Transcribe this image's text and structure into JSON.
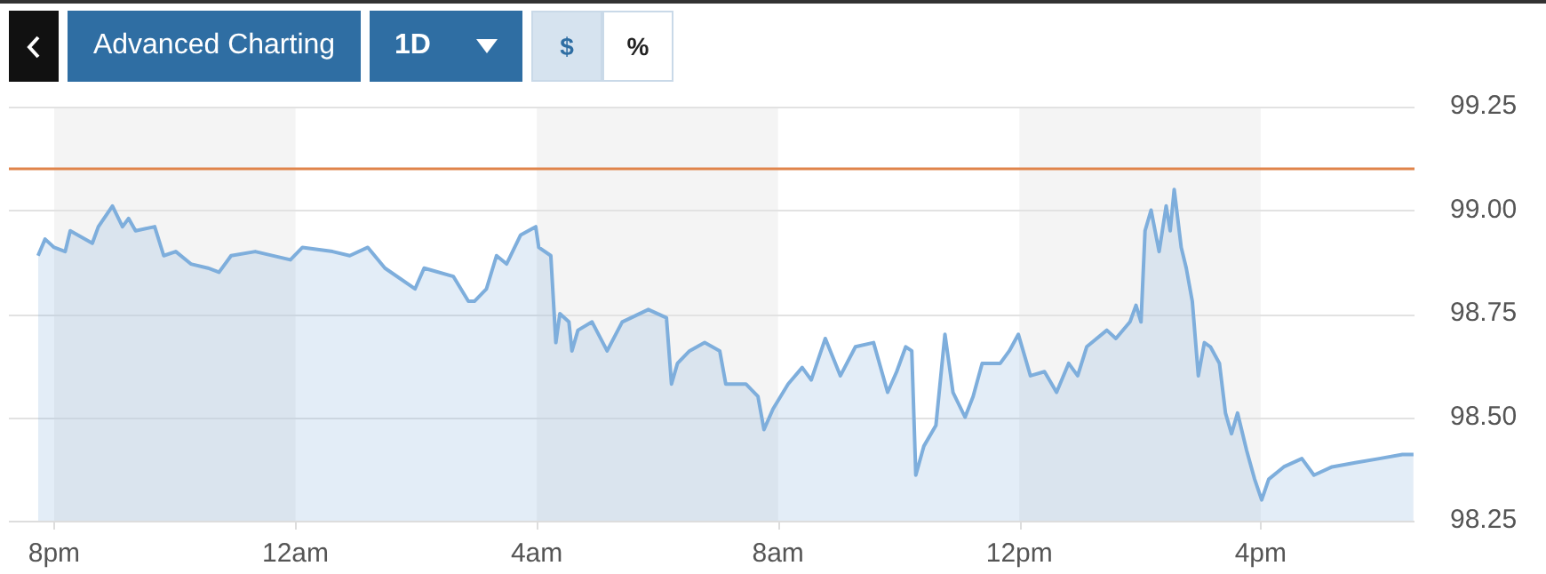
{
  "chart_data": {
    "type": "area",
    "x": [
      "--01-01T19:44",
      "--01-01T19:51",
      "--01-01T20:00",
      "--01-01T20:11",
      "--01-01T20:16",
      "--01-01T20:38",
      "--01-01T20:44",
      "--01-01T20:58",
      "--01-01T21:08",
      "--01-01T21:14",
      "--01-01T21:21",
      "--01-01T21:40",
      "--01-01T21:49",
      "--01-01T22:01",
      "--01-01T22:16",
      "--01-01T22:33",
      "--01-01T22:44",
      "--01-01T22:56",
      "--01-01T23:20",
      "--01-01T23:55",
      "--01-02T00:07",
      "--01-02T00:37",
      "--01-02T00:54",
      "--01-02T01:12",
      "--01-02T01:29",
      "--01-02T01:59",
      "--01-02T02:08",
      "--01-02T02:37",
      "--01-02T02:52",
      "--01-02T02:58",
      "--01-02T03:10",
      "--01-02T03:20",
      "--01-02T03:30",
      "--01-02T03:44",
      "--01-02T03:59",
      "--01-02T04:02",
      "--01-02T04:14",
      "--01-02T04:19",
      "--01-02T04:23",
      "--01-02T04:32",
      "--01-02T04:35",
      "--01-02T04:41",
      "--01-02T04:55",
      "--01-02T05:10",
      "--01-02T05:25",
      "--01-02T05:51",
      "--01-02T06:09",
      "--01-02T06:14",
      "--01-02T06:20",
      "--01-02T06:32",
      "--01-02T06:47",
      "--01-02T07:02",
      "--01-02T07:08",
      "--01-02T07:28",
      "--01-02T07:40",
      "--01-02T07:46",
      "--01-02T07:55",
      "--01-02T08:10",
      "--01-02T08:24",
      "--01-02T08:33",
      "--01-02T08:47",
      "--01-02T09:02",
      "--01-02T09:17",
      "--01-02T09:35",
      "--01-02T09:49",
      "--01-02T09:58",
      "--01-02T10:07",
      "--01-02T10:13",
      "--01-02T10:17",
      "--01-02T10:25",
      "--01-02T10:37",
      "--01-02T10:46",
      "--01-02T10:54",
      "--01-02T11:06",
      "--01-02T11:14",
      "--01-02T11:23",
      "--01-02T11:41",
      "--01-02T11:50",
      "--01-02T11:59",
      "--01-02T12:11",
      "--01-02T12:25",
      "--01-02T12:37",
      "--01-02T12:49",
      "--01-02T12:58",
      "--01-02T13:07",
      "--01-02T13:27",
      "--01-02T13:36",
      "--01-02T13:50",
      "--01-02T13:56",
      "--01-02T14:01",
      "--01-02T14:05",
      "--01-02T14:11",
      "--01-02T14:19",
      "--01-02T14:26",
      "--01-02T14:30",
      "--01-02T14:34",
      "--01-02T14:41",
      "--01-02T14:46",
      "--01-02T14:52",
      "--01-02T14:58",
      "--01-02T15:04",
      "--01-02T15:10",
      "--01-02T15:19",
      "--01-02T15:25",
      "--01-02T15:31",
      "--01-02T15:37",
      "--01-02T15:46",
      "--01-02T15:54",
      "--01-02T16:01",
      "--01-02T16:08",
      "--01-02T16:23",
      "--01-02T16:41",
      "--01-02T16:53",
      "--01-02T17:11",
      "--01-02T17:34",
      "--01-02T17:58",
      "--01-02T18:21",
      "--01-02T18:32"
    ],
    "series": [
      {
        "color": "#7eaedc",
        "values": [
          98.89,
          98.93,
          98.91,
          98.9,
          98.95,
          98.92,
          98.96,
          99.01,
          98.96,
          98.98,
          98.95,
          98.96,
          98.89,
          98.9,
          98.87,
          98.86,
          98.85,
          98.89,
          98.9,
          98.88,
          98.91,
          98.9,
          98.89,
          98.91,
          98.86,
          98.81,
          98.86,
          98.84,
          98.78,
          98.78,
          98.81,
          98.89,
          98.87,
          98.94,
          98.96,
          98.91,
          98.89,
          98.68,
          98.75,
          98.73,
          98.66,
          98.71,
          98.73,
          98.66,
          98.73,
          98.76,
          98.74,
          98.58,
          98.63,
          98.66,
          98.68,
          98.66,
          98.58,
          98.58,
          98.55,
          98.47,
          98.52,
          98.58,
          98.62,
          98.59,
          98.69,
          98.6,
          98.67,
          98.68,
          98.56,
          98.61,
          98.67,
          98.66,
          98.36,
          98.43,
          98.48,
          98.7,
          98.56,
          98.5,
          98.55,
          98.63,
          98.63,
          98.66,
          98.7,
          98.6,
          98.61,
          98.56,
          98.63,
          98.6,
          98.67,
          98.71,
          98.69,
          98.73,
          98.77,
          98.73,
          98.95,
          99,
          98.9,
          99.01,
          98.95,
          99.05,
          98.91,
          98.86,
          98.78,
          98.6,
          98.68,
          98.67,
          98.63,
          98.51,
          98.46,
          98.51,
          98.42,
          98.35,
          98.3,
          98.35,
          98.38,
          98.4,
          98.36,
          98.38,
          98.39,
          98.4,
          98.41,
          98.41
        ]
      }
    ],
    "xlim": [
      "--01-01T19:15",
      "--01-02T18:33"
    ],
    "xticks": [
      {
        "value": "--01-01T20:00",
        "label": "8pm"
      },
      {
        "value": "--01-02T00:00",
        "label": "12am"
      },
      {
        "value": "--01-02T04:00",
        "label": "4am"
      },
      {
        "value": "--01-02T08:00",
        "label": "8am"
      },
      {
        "value": "--01-02T12:00",
        "label": "12pm"
      },
      {
        "value": "--01-02T16:00",
        "label": "4pm"
      }
    ],
    "ylim": [
      98.25,
      99.25
    ],
    "yticks": [
      {
        "value": 98.25,
        "label": "98.25"
      },
      {
        "value": 98.5,
        "label": "98.50"
      },
      {
        "value": 98.75,
        "label": "98.75"
      },
      {
        "value": 99,
        "label": "99.00"
      },
      {
        "value": 99.25,
        "label": "99.25"
      }
    ],
    "ref_lines": [
      {
        "axis": "y",
        "value": 99.1,
        "color": "#e0844a"
      }
    ],
    "bands": [
      {
        "axis": "x",
        "from": "--01-01T20:00",
        "to": "--01-02T00:00",
        "color": "#f4f4f4"
      },
      {
        "axis": "x",
        "from": "--01-02T04:00",
        "to": "--01-02T08:00",
        "color": "#f4f4f4"
      },
      {
        "axis": "x",
        "from": "--01-02T12:00",
        "to": "--01-02T16:00",
        "color": "#f4f4f4"
      }
    ],
    "grid": "y",
    "marker": "none",
    "annotations": [
      "Advanced Charting",
      "1D",
      "$",
      "%"
    ]
  }
}
